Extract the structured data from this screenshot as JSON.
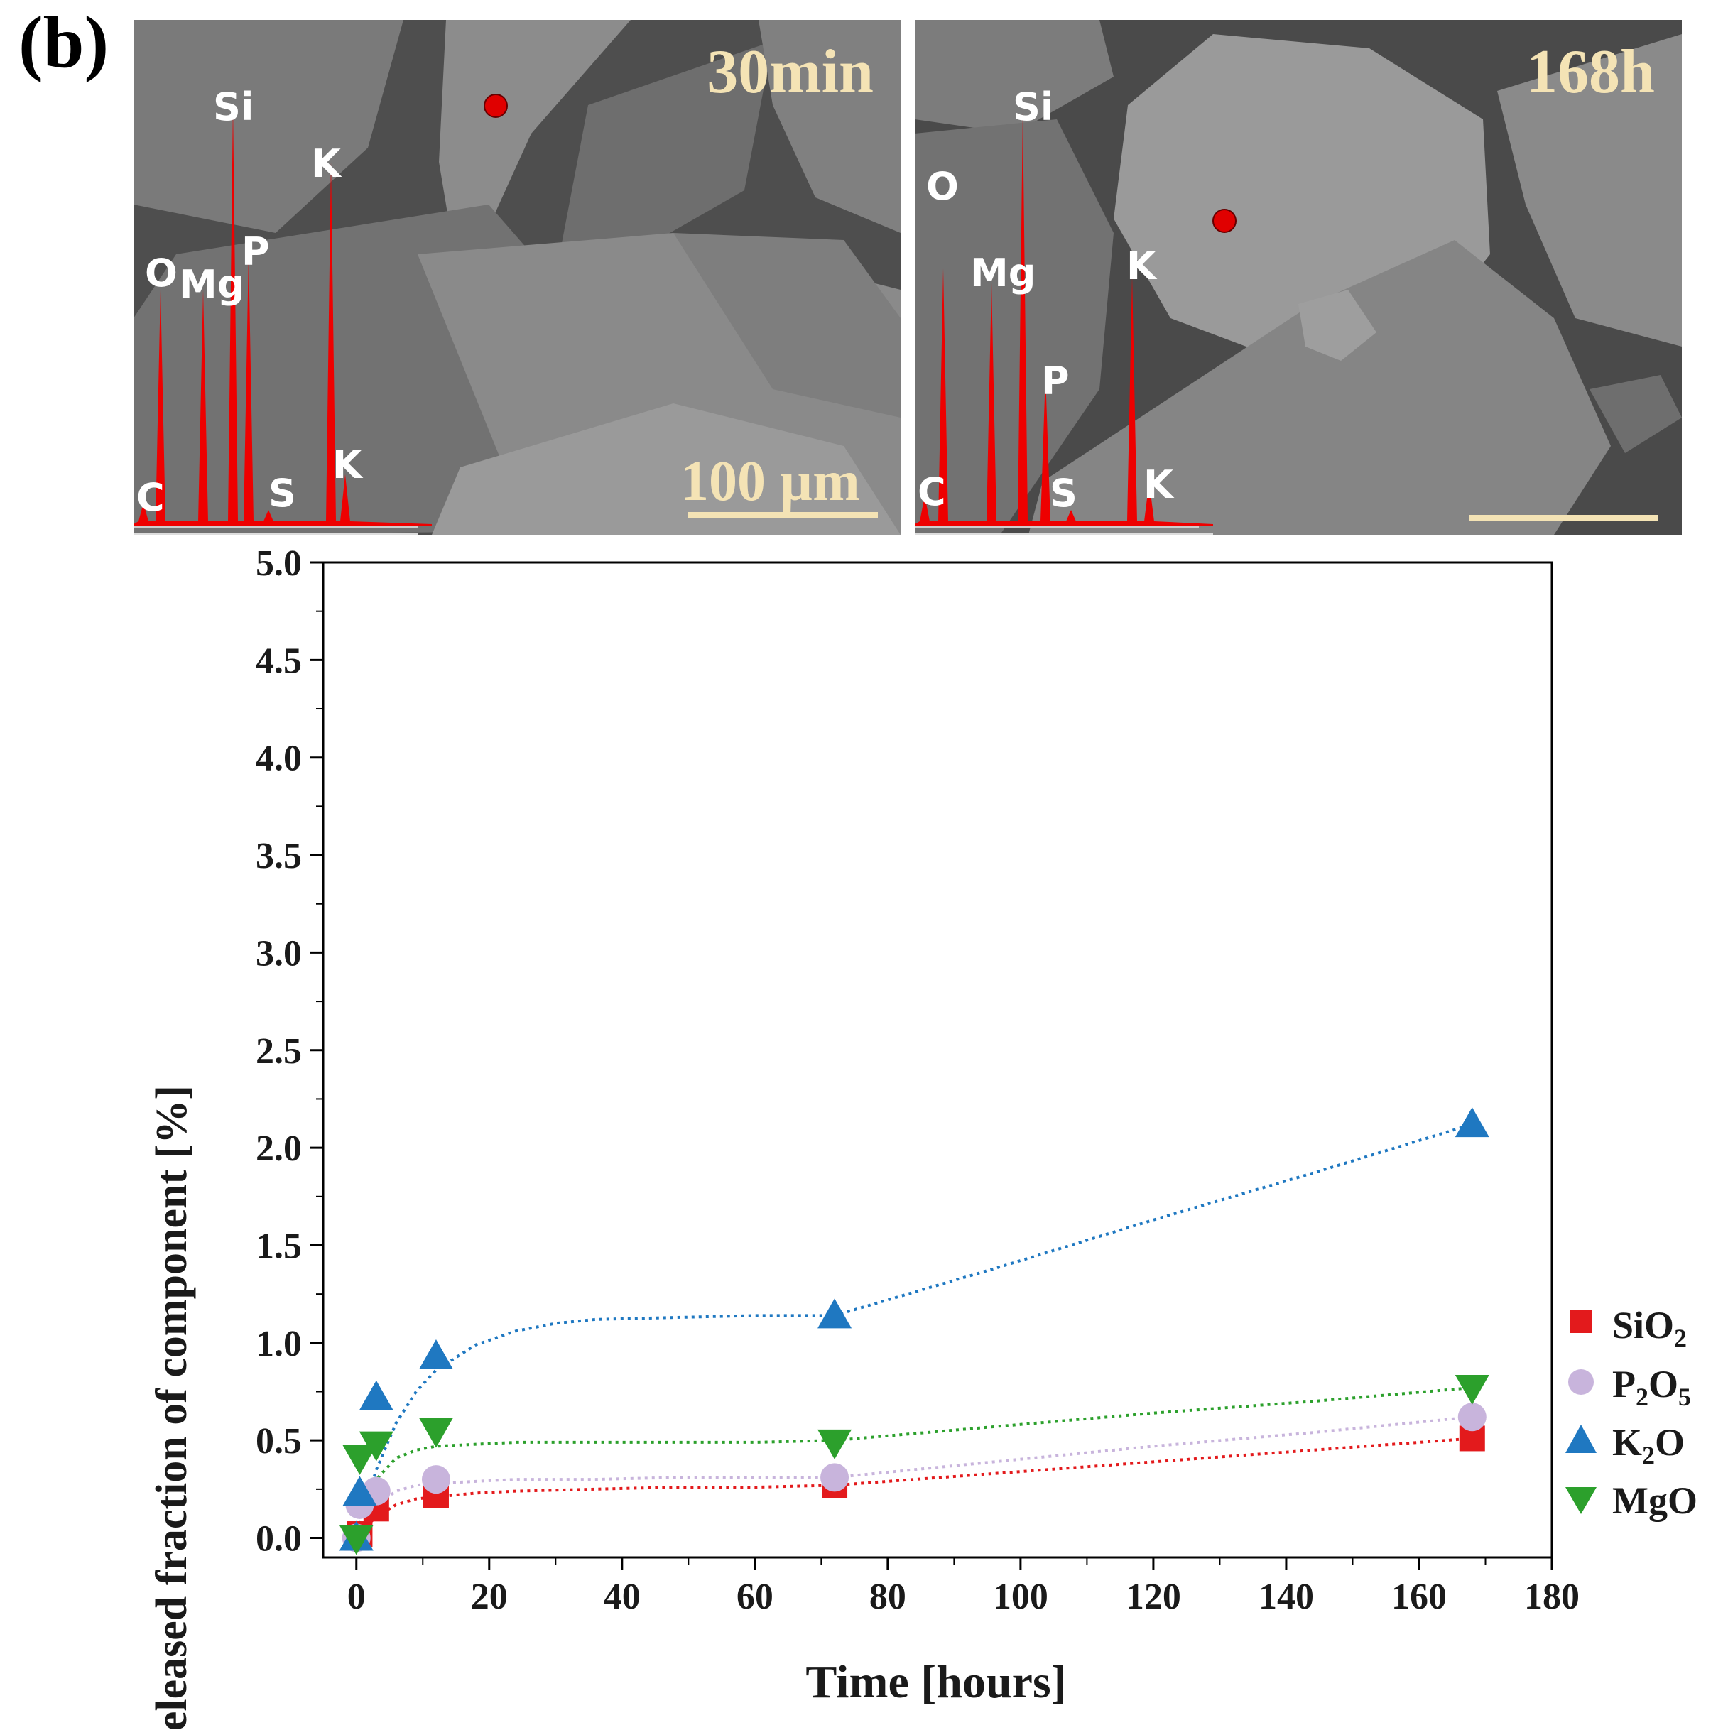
{
  "panel_label": "(b)",
  "sem_images": [
    {
      "time_label": "30min",
      "scale_bar": "100 µm",
      "edx_peaks": [
        "C",
        "O",
        "Mg",
        "Si",
        "P",
        "S",
        "K",
        "K"
      ]
    },
    {
      "time_label": "168h",
      "scale_bar": "",
      "edx_peaks": [
        "C",
        "O",
        "Mg",
        "Si",
        "P",
        "S",
        "K",
        "K"
      ]
    }
  ],
  "colors": {
    "sio2": "#e31a1c",
    "p2o5": "#c8b4dc",
    "k2o": "#1f78c1",
    "mgo": "#2ca02c",
    "edx": "#ee0000",
    "scale": "#f4e3b5"
  },
  "legend": [
    {
      "label": "SiO",
      "sub": "2",
      "series": "sio2",
      "marker": "square"
    },
    {
      "label": "P",
      "sub": "2",
      "label2": "O",
      "sub2": "5",
      "series": "p2o5",
      "marker": "circle"
    },
    {
      "label": "K",
      "sub": "2",
      "label2": "O",
      "series": "k2o",
      "marker": "triangle-up"
    },
    {
      "label": "MgO",
      "series": "mgo",
      "marker": "triangle-down"
    }
  ],
  "chart_data": {
    "type": "scatter",
    "xlabel": "Time [hours]",
    "ylabel": "Released fraction of component [%]",
    "xlim": [
      -5,
      180
    ],
    "ylim": [
      -0.1,
      5.0
    ],
    "xticks": [
      0,
      20,
      40,
      60,
      80,
      100,
      120,
      140,
      160,
      180
    ],
    "yticks": [
      0.0,
      0.5,
      1.0,
      1.5,
      2.0,
      2.5,
      3.0,
      3.5,
      4.0,
      4.5,
      5.0
    ],
    "x": [
      0,
      0.5,
      3,
      12,
      72,
      168
    ],
    "series": [
      {
        "name": "SiO2",
        "key": "sio2",
        "marker": "square",
        "values": [
          0.0,
          0.02,
          0.15,
          0.22,
          0.27,
          0.51
        ],
        "fit_x": [
          0,
          1,
          3,
          6,
          9,
          12,
          18,
          24,
          36,
          48,
          60,
          72,
          96,
          120,
          144,
          168
        ],
        "fit_y": [
          0.0,
          0.04,
          0.11,
          0.17,
          0.2,
          0.21,
          0.23,
          0.24,
          0.25,
          0.26,
          0.26,
          0.27,
          0.33,
          0.39,
          0.45,
          0.51
        ]
      },
      {
        "name": "P2O5",
        "key": "p2o5",
        "marker": "circle",
        "values": [
          0.0,
          0.17,
          0.24,
          0.3,
          0.31,
          0.62
        ],
        "fit_x": [
          0,
          1,
          3,
          6,
          9,
          12,
          18,
          24,
          36,
          48,
          60,
          72,
          96,
          120,
          144,
          168
        ],
        "fit_y": [
          0.0,
          0.07,
          0.17,
          0.24,
          0.27,
          0.28,
          0.29,
          0.3,
          0.3,
          0.31,
          0.31,
          0.31,
          0.39,
          0.47,
          0.54,
          0.62
        ]
      },
      {
        "name": "K2O",
        "key": "k2o",
        "marker": "triangle-up",
        "values": [
          0.0,
          0.23,
          0.72,
          0.93,
          1.14,
          2.12
        ],
        "fit_x": [
          0,
          1,
          3,
          6,
          9,
          12,
          18,
          24,
          30,
          36,
          48,
          60,
          72,
          96,
          120,
          144,
          168
        ],
        "fit_y": [
          0.0,
          0.13,
          0.35,
          0.59,
          0.75,
          0.86,
          0.99,
          1.06,
          1.1,
          1.12,
          1.13,
          1.14,
          1.14,
          1.38,
          1.63,
          1.87,
          2.12
        ]
      },
      {
        "name": "MgO",
        "key": "mgo",
        "marker": "triangle-down",
        "values": [
          0.0,
          0.41,
          0.48,
          0.55,
          0.49,
          0.77
        ],
        "fit_x": [
          0,
          1,
          3,
          6,
          9,
          12,
          18,
          24,
          36,
          48,
          60,
          72,
          96,
          120,
          144,
          168
        ],
        "fit_y": [
          0.0,
          0.13,
          0.3,
          0.41,
          0.45,
          0.47,
          0.48,
          0.49,
          0.49,
          0.49,
          0.49,
          0.5,
          0.57,
          0.64,
          0.7,
          0.77
        ]
      }
    ]
  }
}
